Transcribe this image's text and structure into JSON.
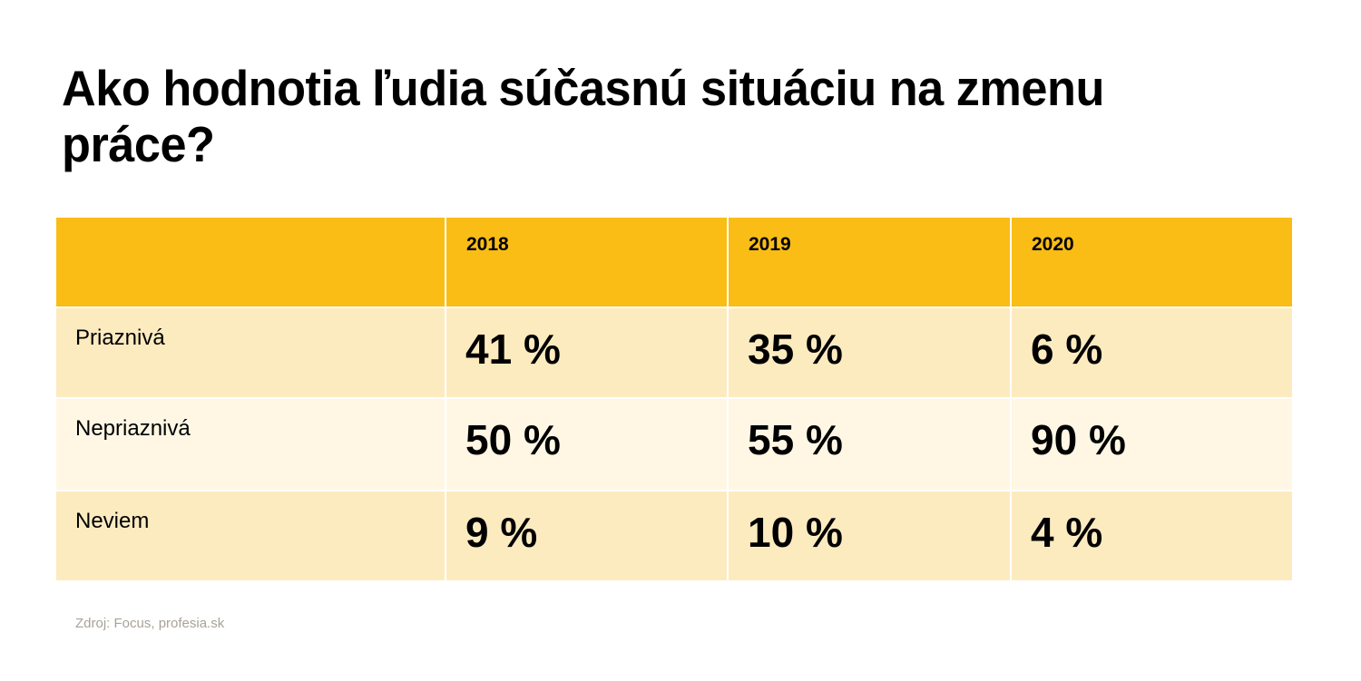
{
  "title": "Ako hodnotia ľudia súčasnú situáciu na zmenu práce?",
  "source": "Zdroj: Focus, profesia.sk",
  "colors": {
    "header": "#f9bd16",
    "row_odd": "#fdebc0",
    "row_even": "#fff7e4",
    "source_text": "#a8a398"
  },
  "chart_data": {
    "type": "table",
    "title": "Ako hodnotia ľudia súčasnú situáciu na zmenu práce?",
    "columns": [
      "",
      "2018",
      "2019",
      "2020"
    ],
    "rows": [
      {
        "label": "Priaznivá",
        "values": [
          "41 %",
          "35 %",
          "6 %"
        ]
      },
      {
        "label": "Nepriaznivá",
        "values": [
          "50 %",
          "55 %",
          "90 %"
        ]
      },
      {
        "label": "Neviem",
        "values": [
          "9 %",
          "10 %",
          "4 %"
        ]
      }
    ],
    "source": "Zdroj: Focus, profesia.sk"
  }
}
